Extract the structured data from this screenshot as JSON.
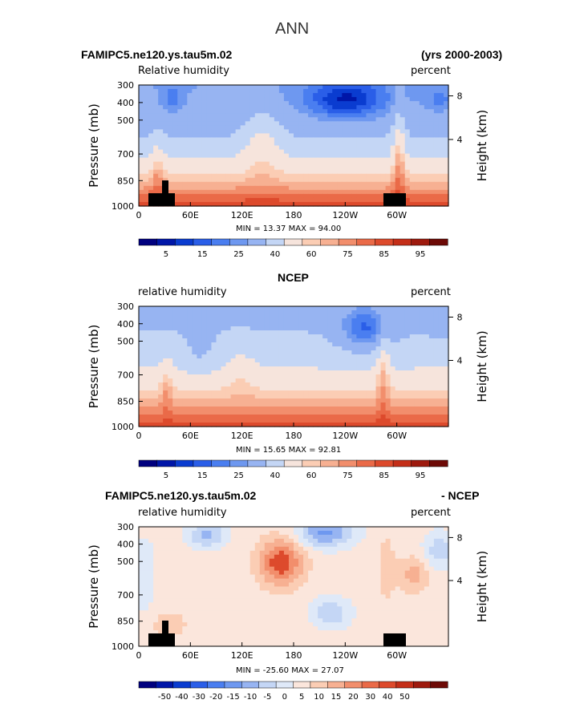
{
  "figure_title": "ANN",
  "colors": {
    "abs_scale": [
      "#00007f",
      "#0016a8",
      "#0a3cd0",
      "#2a5ee8",
      "#4a7ef0",
      "#6e98f0",
      "#97b4f2",
      "#c4d6f5",
      "#f6e4dc",
      "#fbcdb4",
      "#f7b092",
      "#f28e6c",
      "#ea6a48",
      "#dd4a2c",
      "#c42e18",
      "#9e1a0e",
      "#6d0a06"
    ],
    "diff_scale": [
      "#00007f",
      "#0016a8",
      "#0a3cd0",
      "#2a5ee8",
      "#4a7ef0",
      "#6e98f0",
      "#97b4f2",
      "#c4d6f5",
      "#dfe9f8",
      "#fbe6dc",
      "#fbcdb4",
      "#f7b092",
      "#f28e6c",
      "#ea6a48",
      "#dd4a2c",
      "#c42e18",
      "#9e1a0e",
      "#6d0a06"
    ],
    "terrain": "#000000"
  },
  "chart_data": [
    {
      "type": "heatmap",
      "panel_left_title": "FAMIPC5.ne120.ys.tau5m.02",
      "panel_right_title": "(yrs 2000-2003)",
      "variable_label": "Relative humidity",
      "units_label": "percent",
      "ylabel": "Pressure (mb)",
      "ylabel_right": "Height (km)",
      "x_ticks": [
        "0",
        "60E",
        "120E",
        "180",
        "120W",
        "60W"
      ],
      "y_ticks": [
        "300",
        "400",
        "500",
        "700",
        "850",
        "1000"
      ],
      "y_right_ticks": [
        "8",
        "4"
      ],
      "minmax_text": "MIN =   13.37   MAX =   94.00",
      "min": 13.37,
      "max": 94.0,
      "levels_labels": [
        "5",
        "15",
        "25",
        "40",
        "60",
        "75",
        "85",
        "95"
      ]
    },
    {
      "type": "heatmap",
      "panel_center_title": "NCEP",
      "variable_label": "relative humidity",
      "units_label": "percent",
      "ylabel": "Pressure (mb)",
      "ylabel_right": "Height (km)",
      "x_ticks": [
        "0",
        "60E",
        "120E",
        "180",
        "120W",
        "60W"
      ],
      "y_ticks": [
        "300",
        "400",
        "500",
        "700",
        "850",
        "1000"
      ],
      "y_right_ticks": [
        "8",
        "4"
      ],
      "minmax_text": "MIN =   15.65   MAX =   92.81",
      "min": 15.65,
      "max": 92.81,
      "levels_labels": [
        "5",
        "15",
        "25",
        "40",
        "60",
        "75",
        "85",
        "95"
      ]
    },
    {
      "type": "heatmap",
      "panel_left_title": "FAMIPC5.ne120.ys.tau5m.02",
      "panel_right_title": "- NCEP",
      "variable_label": "relative humidity",
      "units_label": "percent",
      "ylabel": "Pressure (mb)",
      "ylabel_right": "Height (km)",
      "x_ticks": [
        "0",
        "60E",
        "120E",
        "180",
        "120W",
        "60W"
      ],
      "y_ticks": [
        "300",
        "400",
        "500",
        "700",
        "850",
        "1000"
      ],
      "y_right_ticks": [
        "8",
        "4"
      ],
      "minmax_text": "MIN = -25.60   MAX =   27.07",
      "min": -25.6,
      "max": 27.07,
      "levels_labels": [
        "-50",
        "-40",
        "-30",
        "-20",
        "-15",
        "-10",
        "-5",
        "0",
        "5",
        "10",
        "15",
        "20",
        "30",
        "40",
        "50"
      ]
    }
  ]
}
